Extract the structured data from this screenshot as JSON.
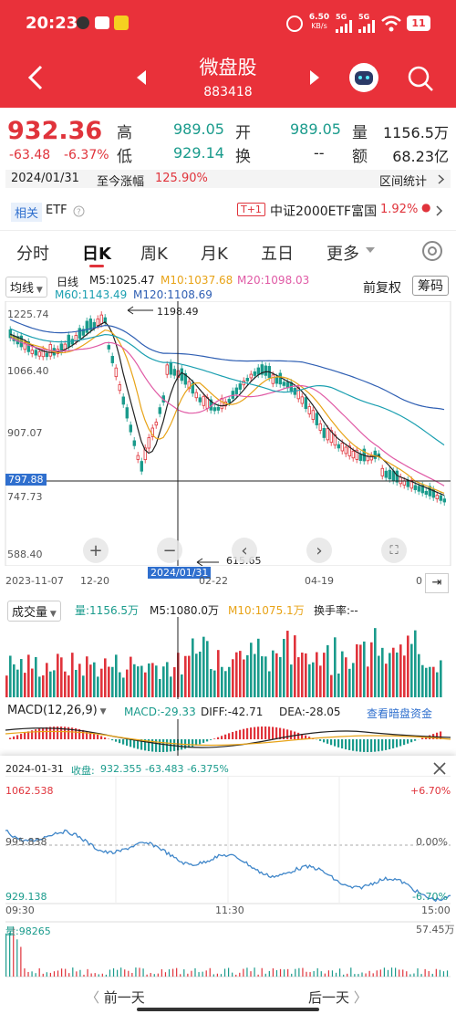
{
  "status": {
    "time": "20:23",
    "net_speed": "6.50",
    "net_unit": "KB/s",
    "sim1": "5G",
    "sim2": "5G",
    "battery": "11"
  },
  "header": {
    "title": "微盘股",
    "code": "883418"
  },
  "quote": {
    "price": "932.36",
    "change": "-63.48",
    "change_pct": "-6.37%",
    "high_label": "高",
    "high": "989.05",
    "low_label": "低",
    "low": "929.14",
    "open_label": "开",
    "open": "989.05",
    "turnover_label": "换",
    "turnover": "--",
    "volume_label": "量",
    "volume": "1156.5万",
    "amount_label": "额",
    "amount": "68.23亿"
  },
  "range_row": {
    "date": "2024/01/31",
    "label": "至今涨幅",
    "value": "125.90%",
    "stats_button": "区间统计"
  },
  "related": {
    "tag": "相关",
    "type": "ETF",
    "badge": "T+1",
    "fund_name": "中证2000ETF富国",
    "fund_change": "1.92%"
  },
  "tabs": [
    "分时",
    "日K",
    "周K",
    "月K",
    "五日",
    "更多"
  ],
  "kline": {
    "indicator": "均线",
    "period": "日线",
    "ma5": "M5:1025.47",
    "ma10": "M10:1037.68",
    "ma20": "M20:1098.03",
    "ma60": "M60:1143.49",
    "ma120": "M120:1108.69",
    "restore": "前复权",
    "chip": "筹码",
    "y_labels": [
      "1225.74",
      "1066.40",
      "907.07",
      "747.73",
      "588.40"
    ],
    "crosshair_value": "797.88",
    "crosshair_date": "2024/01/31",
    "high_mark": "1198.49",
    "low_mark": "615.65",
    "x_labels": [
      "2023-11-07",
      "12-20",
      "02-22",
      "04-19",
      "0"
    ]
  },
  "volume": {
    "label": "成交量",
    "vol": "量:1156.5万",
    "m5": "M5:1080.0万",
    "m10": "M10:1075.1万",
    "turnover": "换手率:--"
  },
  "macd": {
    "label": "MACD(12,26,9)",
    "macd": "MACD:-29.33",
    "diff": "DIFF:-42.71",
    "dea": "DEA:-28.05",
    "link": "查看暗盘资金"
  },
  "popup": {
    "date": "2024-01-31",
    "close_label": "收盘:",
    "close_values": "932.355 -63.483 -6.375%",
    "y_top": "1062.538",
    "y_mid": "995.838",
    "y_bot": "929.138",
    "pct_top": "+6.70%",
    "pct_mid": "0.00%",
    "pct_bot": "-6.70%",
    "t_start": "09:30",
    "t_mid": "11:30",
    "t_end": "15:00",
    "vol_label": "量:98265",
    "vol_max": "57.45万",
    "prev": "前一天",
    "next": "后一天"
  },
  "colors": {
    "brand_red": "#e9313a",
    "up": "#e0333b",
    "down": "#1a9b8c",
    "ma5": "#222222",
    "ma10": "#e8a317",
    "ma20": "#e05aa5",
    "ma60": "#1a9fb0",
    "ma120": "#2f5fb3"
  }
}
